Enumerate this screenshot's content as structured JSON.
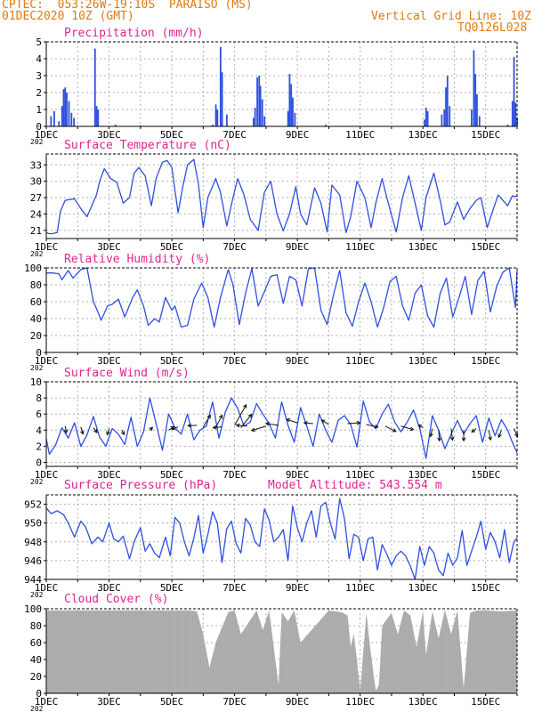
{
  "header": {
    "station": "CPTEC:  053:26W-19:10S  PARAISO (MS)",
    "run": "01DEC2020 10Z (GMT)",
    "grid_note": "Vertical Grid Line: 10Z",
    "code": "TQ0126L028"
  },
  "colors": {
    "orange": "#e07a12",
    "magenta": "#e0238f",
    "blue": "#2f4fe0",
    "grey": "#a9a9a9",
    "grid": "#b0b0b0",
    "wind": "#111111"
  },
  "x_tick_labels": [
    "1DEC",
    "3DEC",
    "5DEC",
    "7DEC",
    "9DEC",
    "11DEC",
    "13DEC",
    "15DEC"
  ],
  "x_tick_days": [
    0,
    2,
    4,
    6,
    8,
    10,
    12,
    14
  ],
  "x_range_days": [
    0,
    15
  ],
  "year_fragment": "202",
  "chart_data": [
    {
      "type": "bar",
      "title": "Precipitation (mm/h)",
      "ylim": [
        0,
        5
      ],
      "yticks": [
        0,
        1,
        2,
        3,
        4,
        5
      ],
      "bars": [
        [
          0.15,
          0.6
        ],
        [
          0.25,
          0.9
        ],
        [
          0.4,
          0.3
        ],
        [
          0.5,
          1.2
        ],
        [
          0.55,
          2.2
        ],
        [
          0.6,
          2.3
        ],
        [
          0.65,
          2.0
        ],
        [
          0.72,
          1.5
        ],
        [
          0.8,
          0.8
        ],
        [
          0.88,
          0.5
        ],
        [
          1.55,
          4.6
        ],
        [
          1.6,
          1.2
        ],
        [
          1.65,
          1.0
        ],
        [
          2.2,
          0.1
        ],
        [
          3.0,
          0.05
        ],
        [
          5.3,
          0.1
        ],
        [
          5.4,
          1.3
        ],
        [
          5.45,
          1.0
        ],
        [
          5.55,
          4.7
        ],
        [
          5.6,
          3.2
        ],
        [
          5.75,
          0.7
        ],
        [
          6.6,
          0.5
        ],
        [
          6.65,
          1.1
        ],
        [
          6.72,
          2.9
        ],
        [
          6.78,
          3.0
        ],
        [
          6.82,
          2.4
        ],
        [
          6.88,
          1.6
        ],
        [
          6.95,
          0.6
        ],
        [
          7.7,
          0.9
        ],
        [
          7.75,
          3.1
        ],
        [
          7.8,
          2.5
        ],
        [
          7.85,
          1.7
        ],
        [
          7.92,
          0.8
        ],
        [
          8.9,
          0.1
        ],
        [
          12.05,
          0.4
        ],
        [
          12.1,
          1.1
        ],
        [
          12.15,
          0.9
        ],
        [
          12.6,
          0.7
        ],
        [
          12.68,
          1.0
        ],
        [
          12.73,
          2.3
        ],
        [
          12.78,
          3.0
        ],
        [
          12.85,
          1.2
        ],
        [
          13.55,
          1.0
        ],
        [
          13.62,
          4.5
        ],
        [
          13.67,
          3.1
        ],
        [
          13.72,
          1.9
        ],
        [
          13.8,
          0.6
        ],
        [
          14.7,
          0.1
        ],
        [
          14.85,
          1.5
        ],
        [
          14.9,
          4.1
        ],
        [
          14.95,
          1.4
        ],
        [
          15.0,
          0.5
        ]
      ]
    },
    {
      "type": "line",
      "title": "Surface Temperature (nC)",
      "ylim": [
        19.5,
        35
      ],
      "yticks": [
        21,
        24,
        27,
        30,
        33
      ],
      "x": [
        0,
        0.08,
        0.2,
        0.35,
        0.45,
        0.6,
        0.9,
        1.1,
        1.3,
        1.45,
        1.6,
        1.7,
        1.85,
        2.05,
        2.25,
        2.45,
        2.65,
        2.8,
        2.95,
        3.15,
        3.35,
        3.5,
        3.7,
        3.85,
        4.0,
        4.2,
        4.35,
        4.5,
        4.7,
        4.85,
        5.0,
        5.15,
        5.4,
        5.55,
        5.75,
        5.95,
        6.1,
        6.3,
        6.5,
        6.75,
        6.95,
        7.15,
        7.35,
        7.55,
        7.75,
        7.95,
        8.1,
        8.3,
        8.55,
        8.75,
        8.95,
        9.1,
        9.35,
        9.55,
        9.7,
        9.9,
        10.15,
        10.35,
        10.5,
        10.7,
        10.85,
        11.15,
        11.35,
        11.55,
        11.75,
        11.95,
        12.1,
        12.35,
        12.55,
        12.7,
        12.85,
        13.1,
        13.3,
        13.5,
        13.7,
        13.85,
        14.05,
        14.25,
        14.4,
        14.55,
        14.7,
        14.85,
        15.0
      ],
      "y": [
        20.6,
        20.4,
        20.4,
        20.6,
        24.5,
        26.5,
        26.8,
        25.0,
        23.5,
        25.5,
        27.5,
        30.0,
        32.3,
        30.5,
        29.8,
        26.0,
        27.0,
        31.5,
        32.5,
        31.0,
        25.5,
        30.5,
        33.5,
        33.8,
        32.5,
        24.2,
        29.0,
        33.0,
        34.0,
        29.5,
        21.5,
        27.0,
        30.5,
        28.0,
        21.8,
        27.0,
        30.5,
        27.5,
        23.0,
        21.0,
        28.0,
        30.0,
        24.0,
        20.9,
        24.0,
        29.0,
        24.0,
        22.0,
        28.8,
        26.0,
        20.7,
        29.3,
        27.5,
        20.6,
        23.5,
        30.0,
        27.0,
        21.5,
        26.0,
        30.5,
        27.0,
        20.7,
        27.0,
        31.0,
        26.0,
        21.0,
        27.0,
        31.5,
        26.5,
        22.0,
        22.5,
        26.2,
        23.0,
        25.0,
        26.5,
        27.0,
        21.5,
        25.0,
        27.5,
        26.5,
        25.5,
        27.3,
        27.2
      ]
    },
    {
      "type": "line",
      "title": "Relative Humidity (%)",
      "ylim": [
        0,
        100
      ],
      "yticks": [
        0,
        20,
        40,
        60,
        80,
        100
      ],
      "x": [
        0,
        0.2,
        0.4,
        0.5,
        0.7,
        0.85,
        1.1,
        1.3,
        1.5,
        1.6,
        1.75,
        1.95,
        2.1,
        2.3,
        2.5,
        2.75,
        2.9,
        3.1,
        3.25,
        3.45,
        3.6,
        3.8,
        4.0,
        4.1,
        4.3,
        4.5,
        4.7,
        4.95,
        5.15,
        5.35,
        5.55,
        5.8,
        5.95,
        6.15,
        6.35,
        6.55,
        6.75,
        6.95,
        7.15,
        7.35,
        7.55,
        7.75,
        7.95,
        8.15,
        8.35,
        8.55,
        8.75,
        8.95,
        9.15,
        9.35,
        9.55,
        9.75,
        9.95,
        10.15,
        10.35,
        10.55,
        10.75,
        10.95,
        11.15,
        11.35,
        11.55,
        11.75,
        11.95,
        12.15,
        12.35,
        12.55,
        12.75,
        12.95,
        13.15,
        13.35,
        13.55,
        13.75,
        13.95,
        14.15,
        14.35,
        14.55,
        14.75,
        14.95,
        15.0
      ],
      "y": [
        94,
        94,
        93,
        86,
        97,
        88,
        98,
        100,
        60,
        52,
        38,
        55,
        57,
        63,
        42,
        65,
        74,
        55,
        32,
        40,
        36,
        65,
        50,
        55,
        30,
        32,
        63,
        82,
        65,
        30,
        65,
        98,
        80,
        33,
        70,
        99,
        55,
        72,
        90,
        92,
        58,
        90,
        86,
        55,
        99,
        100,
        50,
        33,
        68,
        97,
        47,
        31,
        60,
        82,
        60,
        30,
        53,
        84,
        90,
        55,
        38,
        70,
        80,
        43,
        30,
        70,
        88,
        42,
        65,
        90,
        45,
        85,
        96,
        48,
        78,
        95,
        100,
        53,
        97
      ]
    },
    {
      "type": "line",
      "title": "Surface Wind (m/s)",
      "ylim": [
        -0.5,
        10
      ],
      "yticks": [
        0,
        2,
        4,
        6,
        8,
        10
      ],
      "x": [
        0,
        0.1,
        0.3,
        0.5,
        0.7,
        0.9,
        1.1,
        1.3,
        1.5,
        1.7,
        1.9,
        2.1,
        2.3,
        2.5,
        2.7,
        2.9,
        3.1,
        3.3,
        3.5,
        3.7,
        3.9,
        4.1,
        4.3,
        4.5,
        4.7,
        4.9,
        5.1,
        5.3,
        5.5,
        5.7,
        5.9,
        6.1,
        6.3,
        6.5,
        6.7,
        6.9,
        7.1,
        7.3,
        7.5,
        7.7,
        7.9,
        8.1,
        8.3,
        8.5,
        8.7,
        8.9,
        9.1,
        9.3,
        9.5,
        9.7,
        9.9,
        10.1,
        10.3,
        10.5,
        10.7,
        10.9,
        11.1,
        11.3,
        11.5,
        11.7,
        11.9,
        12.1,
        12.3,
        12.5,
        12.7,
        12.9,
        13.1,
        13.3,
        13.5,
        13.7,
        13.9,
        14.1,
        14.3,
        14.5,
        14.7,
        14.9,
        15.0
      ],
      "y": [
        2.9,
        1.0,
        2.2,
        4.3,
        3.0,
        4.9,
        2.0,
        3.4,
        5.7,
        3.1,
        2.0,
        4.2,
        3.5,
        2.2,
        5.6,
        2.0,
        3.8,
        8.0,
        4.8,
        1.5,
        6.0,
        4.3,
        3.5,
        6.0,
        2.8,
        4.0,
        4.5,
        7.5,
        3.0,
        6.2,
        8.0,
        6.7,
        4.5,
        5.0,
        7.3,
        6.0,
        4.8,
        3.0,
        7.5,
        4.6,
        2.5,
        6.8,
        4.5,
        2.0,
        6.0,
        4.0,
        2.5,
        5.2,
        5.8,
        4.7,
        1.9,
        7.6,
        5.0,
        4.2,
        6.0,
        7.2,
        5.0,
        3.8,
        5.0,
        6.5,
        4.2,
        0.5,
        5.8,
        4.0,
        1.7,
        3.5,
        5.2,
        3.5,
        4.8,
        5.8,
        2.5,
        5.5,
        3.3,
        5.3,
        4.0,
        2.0,
        1.2
      ],
      "barbs": [
        [
          0.6,
          4.5,
          0.15,
          -0.75
        ],
        [
          1.1,
          4.4,
          0.25,
          -0.8
        ],
        [
          1.5,
          4.3,
          0.4,
          -0.55
        ],
        [
          2.0,
          4.2,
          -0.2,
          -0.7
        ],
        [
          2.4,
          4.0,
          0.3,
          -0.5
        ],
        [
          3.3,
          4.0,
          0.3,
          0.3
        ],
        [
          3.9,
          4.0,
          0.6,
          0.4
        ],
        [
          4.2,
          4.4,
          -0.7,
          -0.25
        ],
        [
          4.8,
          4.6,
          -1.0,
          -0.05
        ],
        [
          5.0,
          4.4,
          0.8,
          1.3
        ],
        [
          5.4,
          4.3,
          0.7,
          1.4
        ],
        [
          5.6,
          4.4,
          -1.0,
          -0.1
        ],
        [
          6.0,
          4.6,
          1.3,
          2.3
        ],
        [
          6.2,
          4.3,
          1.2,
          1.5
        ],
        [
          6.4,
          4.5,
          -1.2,
          0.1
        ],
        [
          7.0,
          4.5,
          -1.6,
          -0.5
        ],
        [
          7.4,
          4.6,
          -1.4,
          0.2
        ],
        [
          8.0,
          4.9,
          -1.2,
          0.4
        ],
        [
          8.5,
          4.8,
          -1.0,
          0.1
        ],
        [
          9.0,
          4.7,
          -0.8,
          0.5
        ],
        [
          9.6,
          4.8,
          1.4,
          0.1
        ],
        [
          10.2,
          4.7,
          1.3,
          -0.3
        ],
        [
          10.8,
          4.5,
          1.2,
          -0.6
        ],
        [
          11.3,
          4.5,
          1.4,
          -0.4
        ],
        [
          12.0,
          4.3,
          -0.5,
          0.3
        ],
        [
          12.3,
          4.2,
          -0.2,
          -0.9
        ],
        [
          12.5,
          4.0,
          0.1,
          -1.2
        ],
        [
          12.9,
          4.2,
          0.15,
          -1.3
        ],
        [
          13.3,
          4.0,
          0.0,
          -1.2
        ],
        [
          13.7,
          4.2,
          -0.5,
          -0.4
        ],
        [
          14.1,
          4.0,
          0.2,
          -1.1
        ],
        [
          14.5,
          4.0,
          -0.3,
          -0.8
        ],
        [
          14.9,
          4.2,
          0.4,
          -0.9
        ]
      ]
    },
    {
      "type": "line",
      "title": "Surface Pressure (hPa)",
      "extra": "Model Altitude: 543.554  m",
      "ylim": [
        944,
        953
      ],
      "yticks": [
        944,
        946,
        948,
        950,
        952
      ],
      "x": [
        0,
        0.15,
        0.35,
        0.55,
        0.7,
        0.9,
        1.1,
        1.25,
        1.45,
        1.65,
        1.8,
        2.0,
        2.15,
        2.3,
        2.45,
        2.65,
        2.8,
        3.0,
        3.15,
        3.3,
        3.45,
        3.6,
        3.8,
        3.95,
        4.1,
        4.25,
        4.4,
        4.55,
        4.7,
        4.85,
        5.0,
        5.15,
        5.3,
        5.45,
        5.6,
        5.75,
        5.9,
        6.05,
        6.2,
        6.35,
        6.5,
        6.65,
        6.8,
        6.95,
        7.1,
        7.25,
        7.4,
        7.55,
        7.7,
        7.85,
        8.0,
        8.15,
        8.3,
        8.45,
        8.6,
        8.75,
        8.9,
        9.05,
        9.2,
        9.35,
        9.5,
        9.65,
        9.8,
        9.95,
        10.1,
        10.25,
        10.4,
        10.55,
        10.7,
        10.85,
        11.0,
        11.15,
        11.3,
        11.45,
        11.6,
        11.75,
        11.9,
        12.05,
        12.2,
        12.35,
        12.5,
        12.65,
        12.8,
        12.95,
        13.1,
        13.25,
        13.4,
        13.55,
        13.7,
        13.85,
        14.0,
        14.15,
        14.3,
        14.45,
        14.6,
        14.75,
        14.9,
        15.0
      ],
      "y": [
        951.6,
        951.0,
        951.3,
        950.9,
        950.0,
        948.5,
        950.2,
        949.6,
        947.8,
        948.5,
        948.0,
        950.0,
        948.3,
        948.0,
        948.6,
        946.2,
        948.0,
        949.5,
        947.0,
        947.8,
        946.8,
        946.3,
        948.5,
        946.5,
        950.6,
        950.0,
        948.0,
        946.5,
        948.4,
        950.8,
        946.8,
        948.8,
        951.2,
        950.0,
        945.8,
        949.4,
        950.2,
        947.8,
        946.8,
        950.5,
        949.8,
        948.0,
        947.5,
        951.5,
        950.3,
        948.0,
        948.5,
        949.3,
        946.0,
        951.8,
        949.5,
        948.0,
        950.0,
        951.3,
        948.5,
        951.8,
        952.2,
        950.0,
        948.3,
        952.6,
        950.5,
        946.2,
        948.8,
        948.5,
        946.0,
        948.3,
        948.5,
        945.0,
        947.7,
        946.7,
        945.5,
        946.5,
        947.0,
        946.5,
        945.4,
        944.0,
        947.5,
        945.5,
        947.5,
        946.8,
        945.0,
        944.4,
        946.8,
        945.5,
        946.3,
        949.2,
        945.5,
        947.0,
        948.5,
        950.2,
        947.2,
        949.0,
        948.0,
        946.3,
        949.3,
        945.8,
        948.0,
        948.4
      ]
    },
    {
      "type": "area",
      "title": "Cloud Cover (%)",
      "ylim": [
        0,
        100
      ],
      "yticks": [
        0,
        20,
        40,
        60,
        80,
        100
      ],
      "x": [
        0,
        4.6,
        4.8,
        5.0,
        5.2,
        5.4,
        5.8,
        6.0,
        6.2,
        6.7,
        6.9,
        7.1,
        7.4,
        7.5,
        7.7,
        7.9,
        8.1,
        9.0,
        9.4,
        9.6,
        9.7,
        9.8,
        9.9,
        10.0,
        10.2,
        10.3,
        10.4,
        10.5,
        10.6,
        10.7,
        11.0,
        11.2,
        11.4,
        11.6,
        11.8,
        12.0,
        12.1,
        12.3,
        12.5,
        12.7,
        12.9,
        13.1,
        13.3,
        13.5,
        13.7,
        14.0,
        14.5,
        15.0
      ],
      "y": [
        98,
        98,
        97,
        70,
        30,
        60,
        96,
        98,
        70,
        98,
        75,
        98,
        10,
        96,
        85,
        98,
        60,
        98,
        96,
        92,
        55,
        70,
        40,
        3,
        95,
        60,
        30,
        3,
        10,
        80,
        95,
        70,
        98,
        92,
        55,
        97,
        45,
        97,
        65,
        99,
        70,
        98,
        5,
        95,
        98,
        98,
        97,
        98
      ]
    }
  ]
}
